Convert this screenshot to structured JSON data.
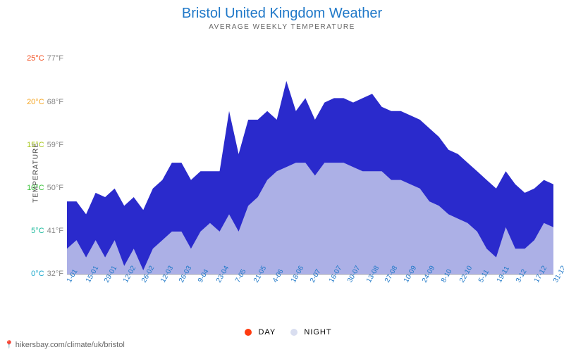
{
  "title": "Bristol United Kingdom Weather",
  "subtitle": "AVERAGE WEEKLY TEMPERATURE",
  "ylabel": "TEMPERATURE",
  "chart": {
    "type": "area",
    "background_color": "#ffffff",
    "title_color": "#1f78c8",
    "title_fontsize": 20,
    "subtitle_fontsize": 10,
    "xlim_index": [
      0,
      51
    ],
    "ylim_c": [
      0,
      27
    ],
    "yticks": [
      {
        "c": "0°C",
        "f": "32°F",
        "value": 0,
        "color_c": "#1aa7cc",
        "color_f": "#888"
      },
      {
        "c": "5°C",
        "f": "41°F",
        "value": 5,
        "color_c": "#18b89a",
        "color_f": "#888"
      },
      {
        "c": "10°C",
        "f": "50°F",
        "value": 10,
        "color_c": "#3ac23a",
        "color_f": "#888"
      },
      {
        "c": "15°C",
        "f": "59°F",
        "value": 15,
        "color_c": "#a8c81e",
        "color_f": "#888"
      },
      {
        "c": "20°C",
        "f": "68°F",
        "value": 20,
        "color_c": "#f5a623",
        "color_f": "#888"
      },
      {
        "c": "25°C",
        "f": "77°F",
        "value": 25,
        "color_c": "#f24a1a",
        "color_f": "#888"
      }
    ],
    "xticks": [
      "1-01",
      "15-01",
      "29-01",
      "12-02",
      "26-02",
      "12-03",
      "26-03",
      "9-04",
      "23-04",
      "7-05",
      "21-05",
      "4-06",
      "18-06",
      "2-07",
      "16-07",
      "30-07",
      "13-08",
      "27-08",
      "10-09",
      "24-09",
      "8-10",
      "22-10",
      "5-11",
      "19-11",
      "3-12",
      "17-12",
      "31-12"
    ],
    "xtick_color": "#1f78c8",
    "xtick_fontsize": 10,
    "xtick_rotation_deg": -60,
    "gradient_stops": [
      {
        "temp_c": 0,
        "color": "#2a2acc"
      },
      {
        "temp_c": 3,
        "color": "#1a6edc"
      },
      {
        "temp_c": 6,
        "color": "#18b8c8"
      },
      {
        "temp_c": 9,
        "color": "#1ac866"
      },
      {
        "temp_c": 12,
        "color": "#7ad81e"
      },
      {
        "temp_c": 15,
        "color": "#e0e814"
      },
      {
        "temp_c": 18,
        "color": "#f6c312"
      },
      {
        "temp_c": 21,
        "color": "#f57c12"
      },
      {
        "temp_c": 24,
        "color": "#f2401a"
      }
    ],
    "night_overlay_color": "#dfe4f0",
    "night_overlay_opacity": 0.72,
    "series": {
      "day": {
        "label": "DAY",
        "legend_color": "#ff3b10",
        "values_c": [
          8.5,
          8.5,
          7,
          9.5,
          9,
          10,
          8,
          9,
          7.5,
          10,
          11,
          13,
          13,
          11,
          12,
          12,
          12,
          19,
          14,
          18,
          18,
          19,
          18,
          22.5,
          19,
          20.5,
          18,
          20,
          20.5,
          20.5,
          20,
          20.5,
          21,
          19.5,
          19,
          19,
          18.5,
          18,
          17,
          16,
          14.5,
          14,
          13,
          12,
          11,
          10,
          12,
          10.5,
          9.5,
          10,
          11,
          10.5
        ]
      },
      "night": {
        "label": "NIGHT",
        "legend_color": "#d9def0",
        "values_c": [
          3,
          4,
          2,
          4,
          2,
          4,
          1,
          3,
          0.5,
          3,
          4,
          5,
          5,
          3,
          5,
          6,
          5,
          7,
          5,
          8,
          9,
          11,
          12,
          12.5,
          13,
          13,
          11.5,
          13,
          13,
          13,
          12.5,
          12,
          12,
          12,
          11,
          11,
          10.5,
          10,
          8.5,
          8,
          7,
          6.5,
          6,
          5,
          3,
          2,
          5.5,
          3,
          3,
          4,
          6,
          5.5
        ]
      }
    }
  },
  "legend": {
    "items": [
      {
        "key": "day",
        "label": "DAY",
        "color": "#ff3b10"
      },
      {
        "key": "night",
        "label": "NIGHT",
        "color": "#d9def0"
      }
    ]
  },
  "attribution": {
    "pin_icon": "📍",
    "text": "hikersbay.com/climate/uk/bristol"
  }
}
